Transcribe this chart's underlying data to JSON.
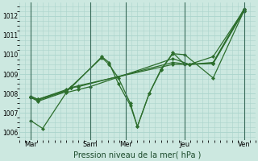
{
  "xlabel": "Pression niveau de la mer( hPa )",
  "bg_color": "#cce8e0",
  "grid_color": "#aad4cc",
  "line_color": "#2d6e2d",
  "vline_color": "#4a7a6a",
  "ylim": [
    1005.6,
    1012.7
  ],
  "yticks": [
    1006,
    1007,
    1008,
    1009,
    1010,
    1011,
    1012
  ],
  "xlim": [
    0,
    10.0
  ],
  "tick_labels": [
    "Mar",
    "Sam",
    "Mer",
    "Jeu",
    "Ven"
  ],
  "tick_positions": [
    0.5,
    3.0,
    4.5,
    7.0,
    9.5
  ],
  "vline_positions": [
    0.5,
    3.0,
    4.5,
    7.0,
    9.5
  ],
  "lines": [
    {
      "x": [
        0.5,
        1.0,
        2.0,
        2.5,
        3.0,
        6.5,
        7.2,
        8.2,
        9.5
      ],
      "y": [
        1006.6,
        1006.2,
        1008.05,
        1008.2,
        1008.35,
        1009.8,
        1009.5,
        1009.9,
        1012.3
      ]
    },
    {
      "x": [
        0.5,
        0.8,
        2.0,
        2.2,
        3.5,
        3.8,
        4.2,
        4.7,
        5.0,
        5.5,
        6.0,
        6.5,
        7.0,
        8.2,
        9.5
      ],
      "y": [
        1007.8,
        1007.6,
        1008.1,
        1008.3,
        1009.9,
        1009.6,
        1008.5,
        1007.4,
        1006.3,
        1008.0,
        1009.25,
        1010.05,
        1010.0,
        1008.8,
        1012.25
      ]
    },
    {
      "x": [
        0.5,
        0.8,
        2.0,
        2.2,
        3.5,
        3.8,
        4.2,
        4.7,
        5.0,
        5.5,
        6.0,
        6.5,
        7.0,
        8.2,
        9.5
      ],
      "y": [
        1007.8,
        1007.65,
        1008.15,
        1008.35,
        1009.85,
        1009.5,
        1008.8,
        1007.5,
        1006.3,
        1008.0,
        1009.2,
        1010.1,
        1009.5,
        1009.55,
        1012.25
      ]
    },
    {
      "x": [
        0.5,
        0.8,
        2.0,
        2.2,
        2.5,
        6.5,
        7.2,
        8.2,
        9.5
      ],
      "y": [
        1007.85,
        1007.7,
        1008.15,
        1008.3,
        1008.4,
        1009.5,
        1009.5,
        1009.55,
        1012.3
      ]
    },
    {
      "x": [
        0.5,
        0.8,
        2.0,
        2.2,
        2.5,
        6.5,
        7.2,
        8.2,
        9.5
      ],
      "y": [
        1007.85,
        1007.7,
        1008.2,
        1008.3,
        1008.35,
        1009.6,
        1009.5,
        1009.6,
        1012.35
      ]
    }
  ]
}
